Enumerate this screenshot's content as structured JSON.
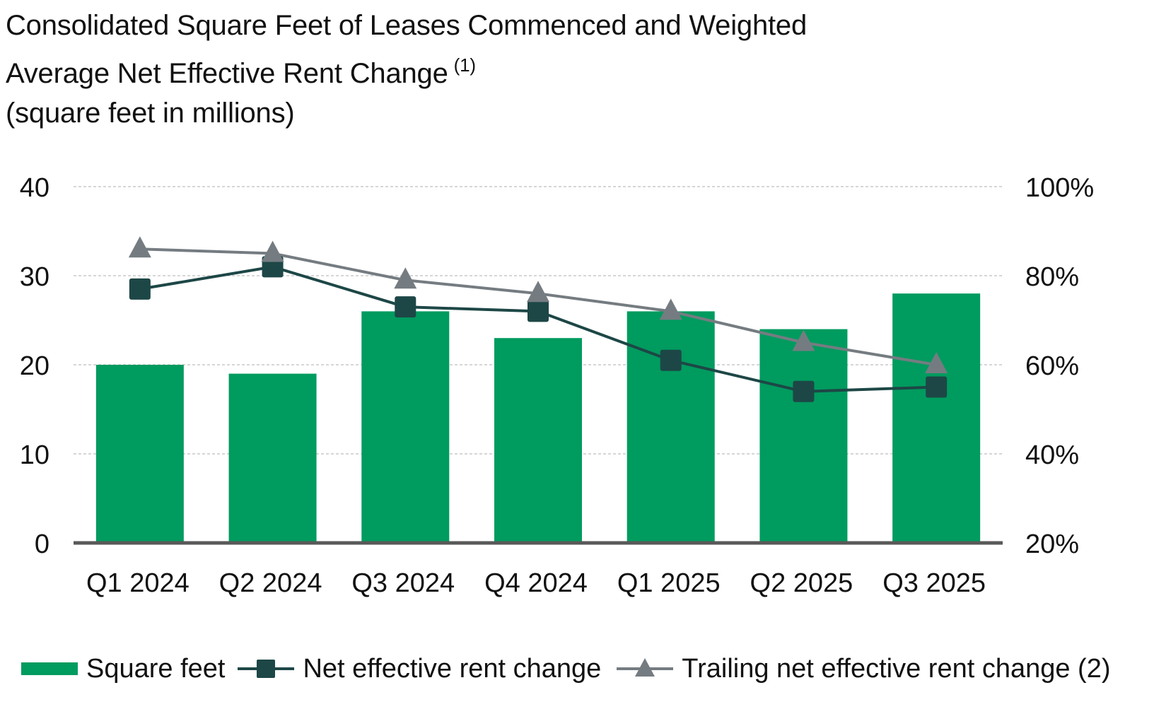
{
  "title": {
    "line1": "Consolidated Square Feet of Leases Commenced and Weighted",
    "line2": "Average Net Effective Rent Change",
    "line2_sup": "(1)",
    "line3": "(square feet in millions)"
  },
  "colors": {
    "bar": "#009B5F",
    "net": "#1D4746",
    "trailing": "#757C81",
    "grid": "#BDBDBD",
    "axis": "#595959"
  },
  "chart_data": {
    "type": "bar",
    "categories": [
      "Q1 2024",
      "Q2 2024",
      "Q3 2024",
      "Q4 2024",
      "Q1 2025",
      "Q2 2025",
      "Q3 2025"
    ],
    "y_left": {
      "min": 0,
      "max": 40,
      "ticks": [
        0,
        10,
        20,
        30,
        40
      ],
      "tick_labels": [
        "0",
        "10",
        "20",
        "30",
        "40"
      ]
    },
    "y_right": {
      "min": 20,
      "max": 100,
      "ticks": [
        20,
        40,
        60,
        80,
        100
      ],
      "tick_labels": [
        "20%",
        "40%",
        "60%",
        "80%",
        "100%"
      ]
    },
    "grid": true,
    "legend_position": "bottom",
    "series": [
      {
        "name": "Square feet",
        "kind": "bar",
        "axis": "left",
        "values": [
          20,
          19,
          26,
          23,
          26,
          24,
          28
        ]
      },
      {
        "name": "Net effective rent change",
        "kind": "line",
        "marker": "square",
        "axis": "right",
        "values": [
          77,
          82,
          73,
          72,
          61,
          54,
          55
        ]
      },
      {
        "name": "Trailing net effective rent change (2)",
        "kind": "line",
        "marker": "triangle",
        "axis": "right",
        "values": [
          86,
          85,
          79,
          76,
          72,
          65,
          60
        ]
      }
    ]
  },
  "legend": {
    "square_feet": "Square feet",
    "net": "Net effective rent change",
    "trailing": "Trailing net effective rent change (2)"
  }
}
